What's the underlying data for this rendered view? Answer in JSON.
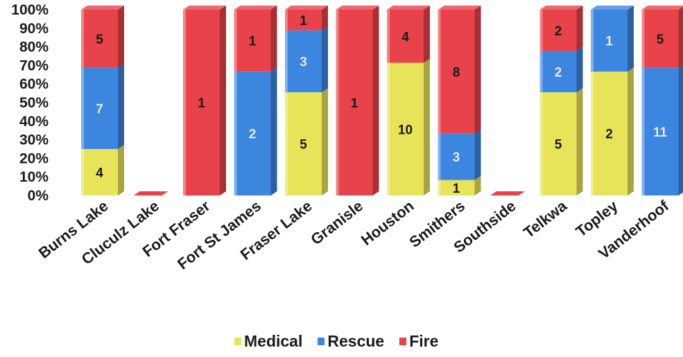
{
  "chart_data": {
    "type": "bar",
    "stacked": "percent",
    "categories": [
      "Burns Lake",
      "Cluculz Lake",
      "Fort Fraser",
      "Fort St James",
      "Fraser Lake",
      "Granisle",
      "Houston",
      "Smithers",
      "Southside",
      "Telkwa",
      "Topley",
      "Vanderhoof"
    ],
    "series": [
      {
        "name": "Medical",
        "color": "#e8e45a",
        "values": [
          4,
          0,
          0,
          0,
          5,
          0,
          10,
          1,
          0,
          5,
          2,
          0
        ]
      },
      {
        "name": "Rescue",
        "color": "#3d86e0",
        "values": [
          7,
          0,
          0,
          2,
          3,
          0,
          0,
          3,
          0,
          2,
          1,
          11
        ]
      },
      {
        "name": "Fire",
        "color": "#e8424a",
        "values": [
          5,
          0,
          1,
          1,
          1,
          1,
          4,
          8,
          0,
          2,
          0,
          5
        ]
      }
    ],
    "yticks": [
      "0%",
      "10%",
      "20%",
      "30%",
      "40%",
      "50%",
      "60%",
      "70%",
      "80%",
      "90%",
      "100%"
    ],
    "ylim": [
      0,
      100
    ],
    "legend": "bottom",
    "grid": false
  }
}
